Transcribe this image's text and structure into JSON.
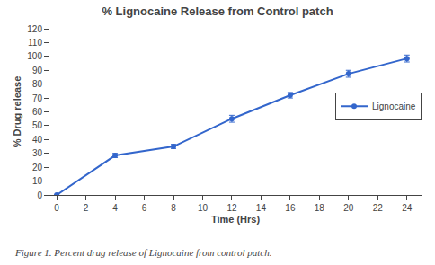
{
  "chart_data": {
    "type": "line",
    "title": "% Lignocaine Release from Control patch",
    "x_label": "Time (Hrs)",
    "y_label": "% Drug release",
    "caption": "Figure 1. Percent drug release of Lignocaine from control patch.",
    "x": [
      0,
      4,
      8,
      12,
      16,
      20,
      24
    ],
    "series": [
      {
        "name": "Lignocaine",
        "color": "#3366CC",
        "marker": "circle",
        "values": [
          0,
          28.5,
          35.0,
          55.0,
          72.0,
          87.5,
          98.5
        ],
        "yerr": [
          0.0,
          1.5,
          1.5,
          2.5,
          2.0,
          2.5,
          2.5
        ]
      }
    ],
    "xlim": [
      -0.5,
      25
    ],
    "ylim": [
      0,
      120
    ],
    "xticks": [
      0,
      2,
      4,
      6,
      8,
      10,
      12,
      14,
      16,
      18,
      20,
      22,
      24
    ],
    "yticks": [
      0,
      10,
      20,
      30,
      40,
      50,
      60,
      70,
      80,
      90,
      100,
      110,
      120
    ],
    "grid": false,
    "legend": "right"
  }
}
